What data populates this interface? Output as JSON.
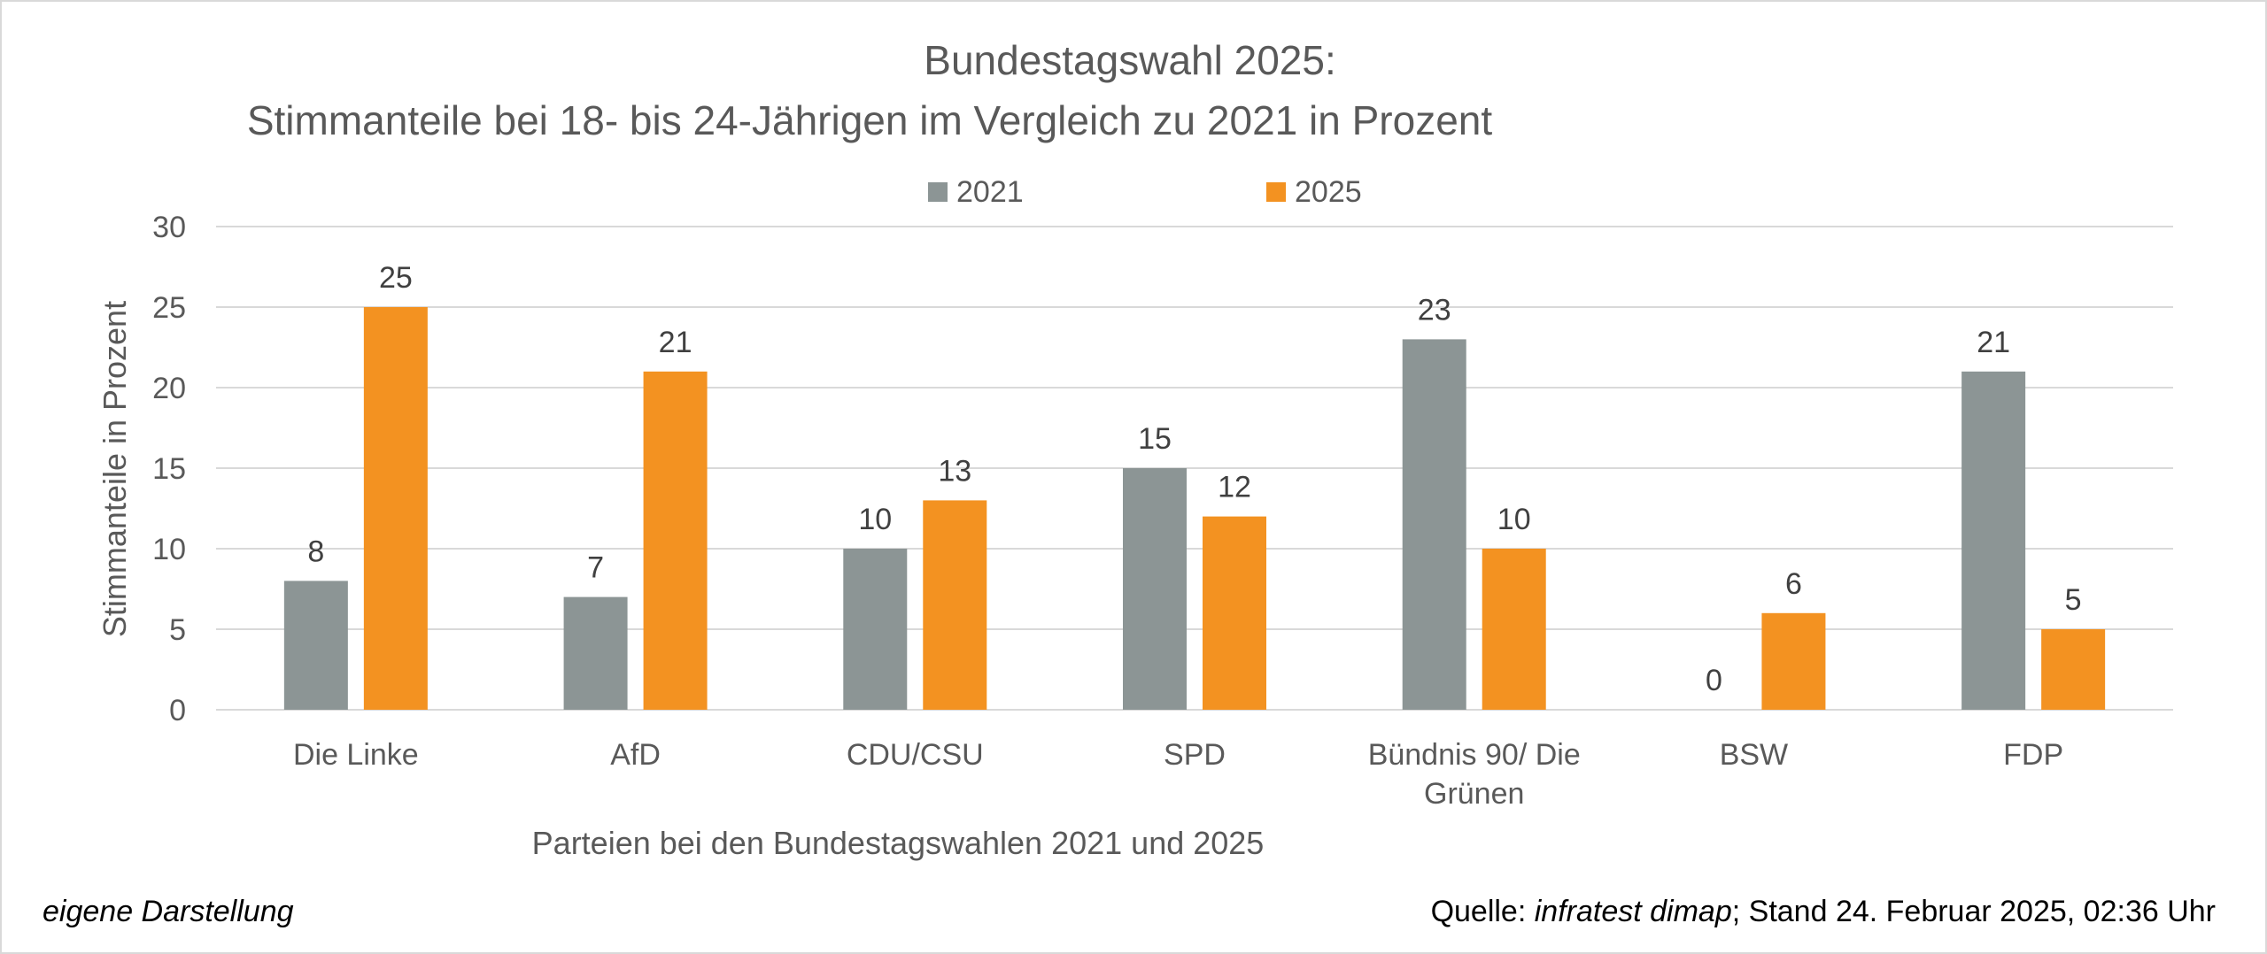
{
  "chart_data": {
    "type": "bar",
    "title": "Bundestagswahl 2025:",
    "subtitle": "Stimmanteile bei 18- bis 24-Jährigen im Vergleich zu 2021 in Prozent",
    "xlabel": "Parteien bei den Bundestagswahlen 2021 und 2025",
    "ylabel": "Stimmanteile in Prozent",
    "ylim": [
      0,
      30
    ],
    "yticks": [
      0,
      5,
      10,
      15,
      20,
      25,
      30
    ],
    "grid": true,
    "legend": "top-center",
    "categories": [
      "Die Linke",
      "AfD",
      "CDU/CSU",
      "SPD",
      "Bündnis 90/ Die Grünen",
      "BSW",
      "FDP"
    ],
    "category_lines": [
      [
        "Die Linke"
      ],
      [
        "AfD"
      ],
      [
        "CDU/CSU"
      ],
      [
        "SPD"
      ],
      [
        "Bündnis 90/ Die",
        "Grünen"
      ],
      [
        "BSW"
      ],
      [
        "FDP"
      ]
    ],
    "series": [
      {
        "name": "2021",
        "color": "#8c9595",
        "values": [
          8,
          7,
          10,
          15,
          23,
          0,
          21
        ]
      },
      {
        "name": "2025",
        "color": "#f39221",
        "values": [
          25,
          21,
          13,
          12,
          10,
          6,
          5
        ]
      }
    ]
  },
  "footer": {
    "left": "eigene Darstellung",
    "source_prefix": "Quelle: ",
    "source_name": "infratest dimap",
    "source_suffix": "; Stand 24. Februar 2025, 02:36 Uhr"
  }
}
